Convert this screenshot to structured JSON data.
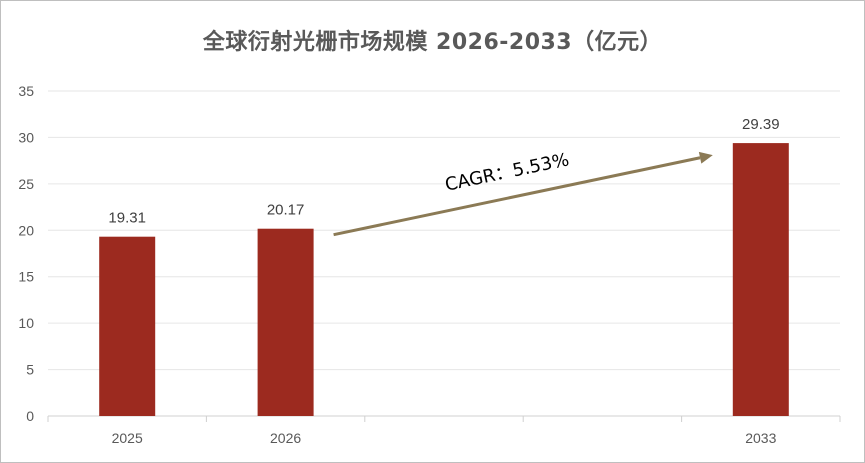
{
  "chart_data": {
    "type": "bar",
    "title": "全球衍射光栅市场规模 2026-2033（亿元）",
    "categories": [
      "2025",
      "2026",
      "",
      "",
      "2033"
    ],
    "values": [
      19.31,
      20.17,
      null,
      null,
      29.39
    ],
    "data_labels": [
      "19.31",
      "20.17",
      "",
      "",
      "29.39"
    ],
    "ylim": [
      0,
      35
    ],
    "yticks": [
      "0",
      "5",
      "10",
      "15",
      "20",
      "25",
      "30",
      "35"
    ],
    "xlabel": "",
    "ylabel": "",
    "grid": true,
    "legend": "none",
    "bar_color": "#9C2A1F",
    "annotation": {
      "text": "CAGR：5.53%",
      "arrow_color": "#8B7A55",
      "from_category": "2026",
      "to_category": "2033"
    }
  }
}
